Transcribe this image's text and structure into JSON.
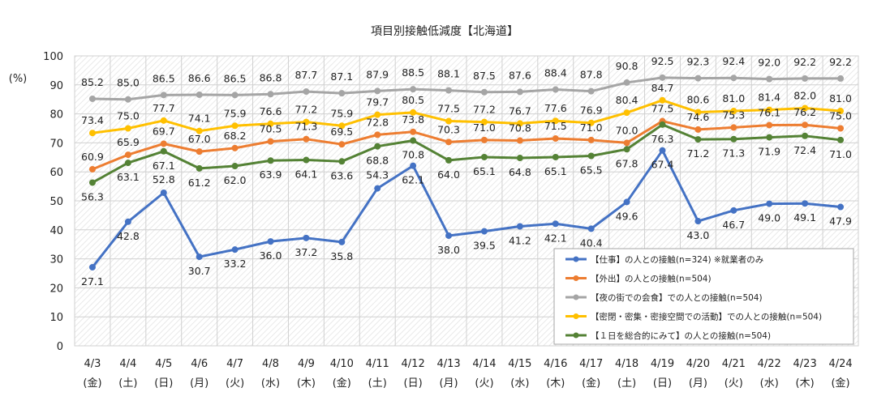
{
  "chart_data": {
    "type": "line",
    "title": "項目別接触低減度【北海道】",
    "ylabel": "(%)",
    "ylim": [
      0,
      100
    ],
    "yticks": [
      0,
      10,
      20,
      30,
      40,
      50,
      60,
      70,
      80,
      90,
      100
    ],
    "grid": true,
    "legend_position": "bottom-right",
    "categories": [
      "4/3",
      "4/4",
      "4/5",
      "4/6",
      "4/7",
      "4/8",
      "4/9",
      "4/10",
      "4/11",
      "4/12",
      "4/13",
      "4/14",
      "4/15",
      "4/16",
      "4/17",
      "4/18",
      "4/19",
      "4/20",
      "4/21",
      "4/22",
      "4/23",
      "4/24"
    ],
    "weekdays": [
      "(金)",
      "(土)",
      "(日)",
      "(月)",
      "(火)",
      "(水)",
      "(木)",
      "(金)",
      "(土)",
      "(日)",
      "(月)",
      "(火)",
      "(水)",
      "(木)",
      "(金)",
      "(土)",
      "(日)",
      "(月)",
      "(火)",
      "(水)",
      "(木)",
      "(金)"
    ],
    "series": [
      {
        "name": "【仕事】の人との接触(n=324) ※就業者のみ",
        "color": "#4472C4",
        "values": [
          27.1,
          42.8,
          52.8,
          30.7,
          33.2,
          36.0,
          37.2,
          35.8,
          54.3,
          62.1,
          38.0,
          39.5,
          41.2,
          42.1,
          40.4,
          49.6,
          67.4,
          43.0,
          46.7,
          49.0,
          49.1,
          47.9
        ]
      },
      {
        "name": "【外出】の人との接触(n=504)",
        "color": "#ED7D31",
        "values": [
          60.9,
          65.9,
          69.7,
          67.0,
          68.2,
          70.5,
          71.3,
          69.5,
          72.8,
          73.8,
          70.3,
          71.0,
          70.8,
          71.5,
          71.0,
          70.0,
          77.5,
          74.6,
          75.3,
          76.1,
          76.2,
          75.0
        ]
      },
      {
        "name": "【夜の街での会食】での人との接触(n=504)",
        "color": "#A5A5A5",
        "values": [
          85.2,
          85.0,
          86.5,
          86.6,
          86.5,
          86.8,
          87.7,
          87.1,
          87.9,
          88.5,
          88.1,
          87.5,
          87.6,
          88.4,
          87.8,
          90.8,
          92.5,
          92.3,
          92.4,
          92.0,
          92.2,
          92.2
        ]
      },
      {
        "name": "【密閉・密集・密接空間での活動】での人との接触(n=504)",
        "color": "#FFC000",
        "values": [
          73.4,
          75.0,
          77.7,
          74.1,
          75.9,
          76.6,
          77.2,
          75.9,
          79.7,
          80.5,
          77.5,
          77.2,
          76.7,
          77.6,
          76.9,
          80.4,
          84.7,
          80.6,
          81.0,
          81.4,
          82.0,
          81.0
        ]
      },
      {
        "name": "【１日を総合的にみて】の人との接触(n=504)",
        "color": "#548235",
        "values": [
          56.3,
          63.1,
          67.1,
          61.2,
          62.0,
          63.9,
          64.1,
          63.6,
          68.8,
          70.8,
          64.0,
          65.1,
          64.8,
          65.1,
          65.5,
          67.8,
          76.3,
          71.2,
          71.3,
          71.9,
          72.4,
          71.0
        ]
      }
    ]
  }
}
